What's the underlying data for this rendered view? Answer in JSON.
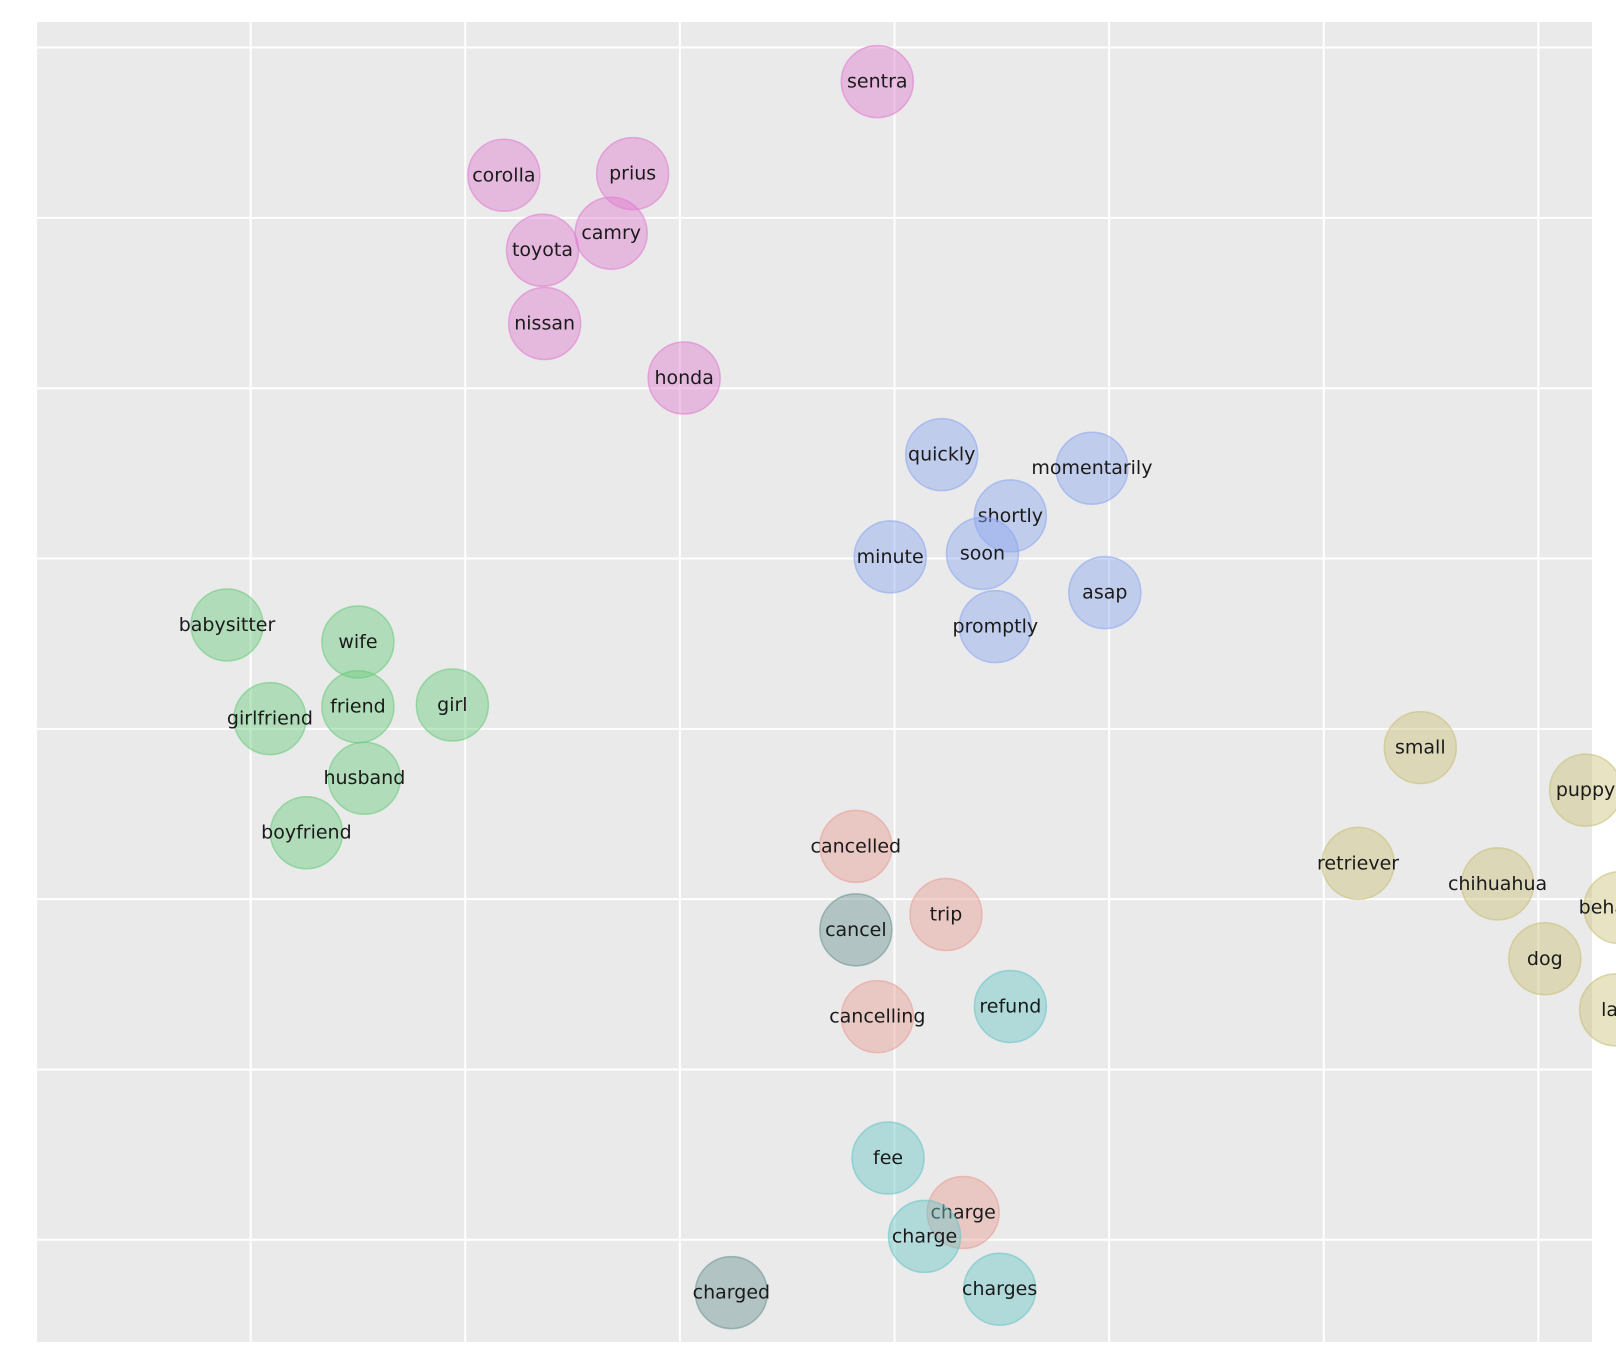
{
  "chart_data": {
    "type": "scatter",
    "title": "",
    "xlabel": "",
    "ylabel": "",
    "grid": true,
    "legend": "none",
    "xlim": [
      -4.0,
      3.25
    ],
    "ylim": [
      -3.6,
      4.15
    ],
    "series": [
      {
        "color": "#e07fd0",
        "points": [
          {
            "label": "sentra",
            "x": -0.08,
            "y": 3.8
          },
          {
            "label": "corolla",
            "x": -1.82,
            "y": 3.25
          },
          {
            "label": "prius",
            "x": -1.22,
            "y": 3.26
          },
          {
            "label": "camry",
            "x": -1.32,
            "y": 2.91
          },
          {
            "label": "toyota",
            "x": -1.64,
            "y": 2.81
          },
          {
            "label": "nissan",
            "x": -1.63,
            "y": 2.38
          },
          {
            "label": "honda",
            "x": -0.98,
            "y": 2.06
          }
        ]
      },
      {
        "color": "#8ea9f0",
        "points": [
          {
            "label": "quickly",
            "x": 0.22,
            "y": 1.61
          },
          {
            "label": "momentarily",
            "x": 0.92,
            "y": 1.53
          },
          {
            "label": "shortly",
            "x": 0.54,
            "y": 1.25
          },
          {
            "label": "soon",
            "x": 0.41,
            "y": 1.03
          },
          {
            "label": "minute",
            "x": -0.02,
            "y": 1.01
          },
          {
            "label": "asap",
            "x": 0.98,
            "y": 0.8
          },
          {
            "label": "promptly",
            "x": 0.47,
            "y": 0.6
          }
        ]
      },
      {
        "color": "#6ccb7e",
        "points": [
          {
            "label": "babysitter",
            "x": -3.11,
            "y": 0.61
          },
          {
            "label": "wife",
            "x": -2.5,
            "y": 0.51
          },
          {
            "label": "friend",
            "x": -2.5,
            "y": 0.13
          },
          {
            "label": "girlfriend",
            "x": -2.91,
            "y": 0.06
          },
          {
            "label": "girl",
            "x": -2.06,
            "y": 0.14
          },
          {
            "label": "husband",
            "x": -2.47,
            "y": -0.29
          },
          {
            "label": "boyfriend",
            "x": -2.74,
            "y": -0.61
          }
        ]
      },
      {
        "color": "#c9c07a",
        "points": [
          {
            "label": "small",
            "x": 2.45,
            "y": -0.11
          },
          {
            "label": "puppy",
            "x": 3.22,
            "y": -0.36
          },
          {
            "label": "retriever",
            "x": 2.16,
            "y": -0.79
          },
          {
            "label": "chihuahua",
            "x": 2.81,
            "y": -0.91
          },
          {
            "label": "behaved",
            "x": 3.38,
            "y": -1.05
          },
          {
            "label": "dog",
            "x": 3.03,
            "y": -1.35
          },
          {
            "label": "lap",
            "x": 3.36,
            "y": -1.65
          }
        ]
      },
      {
        "color": "#e89f97",
        "points": [
          {
            "label": "cancelled",
            "x": -0.18,
            "y": -0.69
          },
          {
            "label": "trip",
            "x": 0.24,
            "y": -1.09
          },
          {
            "label": "cancelling",
            "x": -0.08,
            "y": -1.69
          },
          {
            "label": "charge",
            "x": 0.32,
            "y": -2.84
          }
        ]
      },
      {
        "color": "#6bc5c8",
        "points": [
          {
            "label": "refund",
            "x": 0.54,
            "y": -1.63
          },
          {
            "label": "fee",
            "x": -0.03,
            "y": -2.52
          },
          {
            "label": "charge",
            "x": 0.14,
            "y": -2.98
          },
          {
            "label": "charges",
            "x": 0.49,
            "y": -3.29
          }
        ]
      },
      {
        "color": "#6e9494",
        "points": [
          {
            "label": "cancel",
            "x": -0.18,
            "y": -1.18
          },
          {
            "label": "charged",
            "x": -0.76,
            "y": -3.31
          }
        ]
      }
    ]
  }
}
